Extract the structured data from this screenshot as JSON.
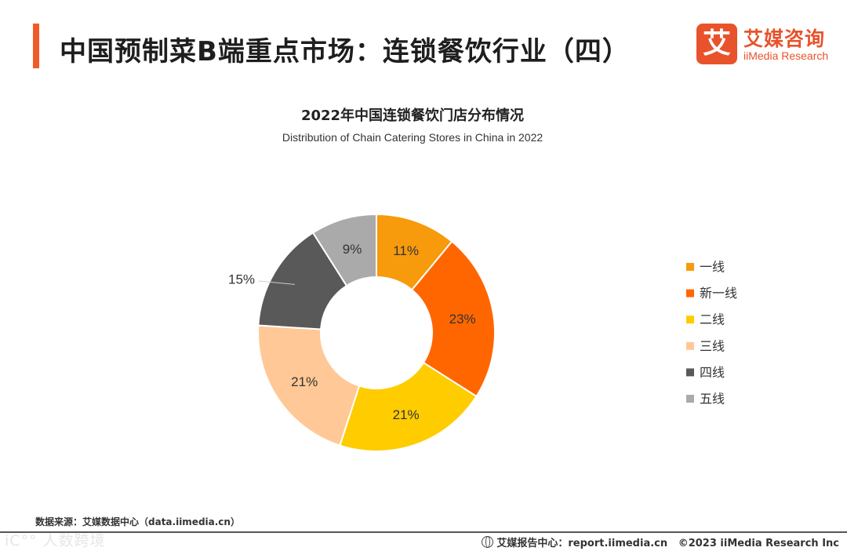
{
  "header": {
    "title": "中国预制菜B端重点市场：连锁餐饮行业（四）",
    "logo_mark": "艾",
    "logo_cn": "艾媒咨询",
    "logo_en": "iiMedia Research"
  },
  "chart_data": {
    "type": "pie",
    "donut": true,
    "title": "2022年中国连锁餐饮门店分布情况",
    "subtitle": "Distribution of Chain Catering Stores in China in 2022",
    "categories": [
      "一线",
      "新一线",
      "二线",
      "三线",
      "四线",
      "五线"
    ],
    "values": [
      11,
      23,
      21,
      21,
      15,
      9
    ],
    "value_labels": [
      "11%",
      "23%",
      "21%",
      "21%",
      "15%",
      "9%"
    ],
    "colors": [
      "#f79a0c",
      "#ff6600",
      "#ffcc00",
      "#ffc896",
      "#595959",
      "#aaaaaa"
    ],
    "legend_position": "right"
  },
  "footer": {
    "source": "数据来源：艾媒数据中心（data.iimedia.cn）",
    "watermark": "iC°° 人数跨境",
    "report_center": "艾媒报告中心：report.iimedia.cn",
    "copyright": "©2023  iiMedia Research  Inc"
  }
}
